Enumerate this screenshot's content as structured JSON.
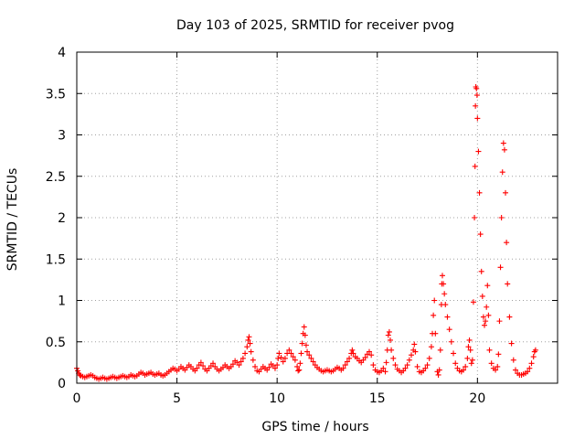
{
  "chart_data": {
    "type": "scatter",
    "title": "Day 103 of 2025, SRMTID for receiver pvog",
    "xlabel": "GPS time / hours",
    "ylabel": "SRMTID / TECUs",
    "xlim": [
      0,
      24
    ],
    "ylim": [
      0,
      4
    ],
    "xticks": [
      0,
      5,
      10,
      15,
      20
    ],
    "yticks": [
      0,
      0.5,
      1,
      1.5,
      2,
      2.5,
      3,
      3.5,
      4
    ],
    "xtick_labels": [
      "0",
      "5",
      "10",
      "15",
      "20"
    ],
    "ytick_labels": [
      "0",
      "0.5",
      "1",
      "1.5",
      "2",
      "2.5",
      "3",
      "3.5",
      "4"
    ],
    "grid": true,
    "marker": "+",
    "color": "#ff0000",
    "series": [
      {
        "name": "SRMTID",
        "points": [
          [
            0.0,
            0.18
          ],
          [
            0.05,
            0.15
          ],
          [
            0.1,
            0.12
          ],
          [
            0.15,
            0.1
          ],
          [
            0.2,
            0.09
          ],
          [
            0.3,
            0.08
          ],
          [
            0.4,
            0.07
          ],
          [
            0.5,
            0.08
          ],
          [
            0.6,
            0.09
          ],
          [
            0.7,
            0.1
          ],
          [
            0.8,
            0.09
          ],
          [
            0.9,
            0.07
          ],
          [
            1.0,
            0.06
          ],
          [
            1.1,
            0.05
          ],
          [
            1.2,
            0.06
          ],
          [
            1.3,
            0.07
          ],
          [
            1.4,
            0.06
          ],
          [
            1.5,
            0.05
          ],
          [
            1.6,
            0.06
          ],
          [
            1.7,
            0.07
          ],
          [
            1.8,
            0.08
          ],
          [
            1.9,
            0.07
          ],
          [
            2.0,
            0.06
          ],
          [
            2.1,
            0.07
          ],
          [
            2.2,
            0.08
          ],
          [
            2.3,
            0.09
          ],
          [
            2.4,
            0.08
          ],
          [
            2.5,
            0.07
          ],
          [
            2.6,
            0.08
          ],
          [
            2.7,
            0.1
          ],
          [
            2.8,
            0.09
          ],
          [
            2.9,
            0.08
          ],
          [
            3.0,
            0.09
          ],
          [
            3.1,
            0.11
          ],
          [
            3.2,
            0.13
          ],
          [
            3.3,
            0.12
          ],
          [
            3.4,
            0.1
          ],
          [
            3.5,
            0.11
          ],
          [
            3.6,
            0.12
          ],
          [
            3.7,
            0.13
          ],
          [
            3.8,
            0.11
          ],
          [
            3.9,
            0.1
          ],
          [
            4.0,
            0.11
          ],
          [
            4.1,
            0.12
          ],
          [
            4.2,
            0.1
          ],
          [
            4.3,
            0.09
          ],
          [
            4.4,
            0.1
          ],
          [
            4.5,
            0.12
          ],
          [
            4.6,
            0.14
          ],
          [
            4.7,
            0.16
          ],
          [
            4.8,
            0.18
          ],
          [
            4.9,
            0.17
          ],
          [
            5.0,
            0.15
          ],
          [
            5.1,
            0.17
          ],
          [
            5.2,
            0.2
          ],
          [
            5.3,
            0.18
          ],
          [
            5.4,
            0.16
          ],
          [
            5.5,
            0.19
          ],
          [
            5.6,
            0.22
          ],
          [
            5.7,
            0.2
          ],
          [
            5.8,
            0.17
          ],
          [
            5.9,
            0.15
          ],
          [
            6.0,
            0.18
          ],
          [
            6.1,
            0.22
          ],
          [
            6.2,
            0.25
          ],
          [
            6.3,
            0.21
          ],
          [
            6.4,
            0.17
          ],
          [
            6.5,
            0.15
          ],
          [
            6.6,
            0.18
          ],
          [
            6.7,
            0.21
          ],
          [
            6.8,
            0.24
          ],
          [
            6.9,
            0.2
          ],
          [
            7.0,
            0.17
          ],
          [
            7.1,
            0.15
          ],
          [
            7.2,
            0.17
          ],
          [
            7.3,
            0.19
          ],
          [
            7.4,
            0.22
          ],
          [
            7.5,
            0.2
          ],
          [
            7.6,
            0.18
          ],
          [
            7.7,
            0.2
          ],
          [
            7.8,
            0.23
          ],
          [
            7.9,
            0.27
          ],
          [
            8.0,
            0.25
          ],
          [
            8.1,
            0.22
          ],
          [
            8.2,
            0.26
          ],
          [
            8.3,
            0.3
          ],
          [
            8.4,
            0.36
          ],
          [
            8.5,
            0.44
          ],
          [
            8.55,
            0.52
          ],
          [
            8.6,
            0.56
          ],
          [
            8.65,
            0.48
          ],
          [
            8.7,
            0.38
          ],
          [
            8.8,
            0.28
          ],
          [
            8.9,
            0.2
          ],
          [
            9.0,
            0.15
          ],
          [
            9.1,
            0.14
          ],
          [
            9.2,
            0.17
          ],
          [
            9.3,
            0.2
          ],
          [
            9.4,
            0.18
          ],
          [
            9.5,
            0.16
          ],
          [
            9.6,
            0.19
          ],
          [
            9.7,
            0.23
          ],
          [
            9.8,
            0.21
          ],
          [
            9.9,
            0.18
          ],
          [
            10.0,
            0.22
          ],
          [
            10.05,
            0.3
          ],
          [
            10.1,
            0.36
          ],
          [
            10.2,
            0.31
          ],
          [
            10.3,
            0.26
          ],
          [
            10.4,
            0.3
          ],
          [
            10.5,
            0.36
          ],
          [
            10.6,
            0.4
          ],
          [
            10.7,
            0.36
          ],
          [
            10.8,
            0.32
          ],
          [
            10.9,
            0.28
          ],
          [
            11.0,
            0.2
          ],
          [
            11.05,
            0.15
          ],
          [
            11.1,
            0.16
          ],
          [
            11.15,
            0.24
          ],
          [
            11.2,
            0.36
          ],
          [
            11.25,
            0.48
          ],
          [
            11.3,
            0.6
          ],
          [
            11.35,
            0.68
          ],
          [
            11.4,
            0.58
          ],
          [
            11.45,
            0.46
          ],
          [
            11.5,
            0.38
          ],
          [
            11.6,
            0.34
          ],
          [
            11.7,
            0.3
          ],
          [
            11.8,
            0.26
          ],
          [
            11.9,
            0.22
          ],
          [
            12.0,
            0.19
          ],
          [
            12.1,
            0.17
          ],
          [
            12.2,
            0.15
          ],
          [
            12.3,
            0.14
          ],
          [
            12.4,
            0.15
          ],
          [
            12.5,
            0.16
          ],
          [
            12.6,
            0.15
          ],
          [
            12.7,
            0.14
          ],
          [
            12.8,
            0.15
          ],
          [
            12.9,
            0.17
          ],
          [
            13.0,
            0.19
          ],
          [
            13.1,
            0.18
          ],
          [
            13.2,
            0.16
          ],
          [
            13.3,
            0.18
          ],
          [
            13.4,
            0.22
          ],
          [
            13.5,
            0.26
          ],
          [
            13.6,
            0.3
          ],
          [
            13.7,
            0.36
          ],
          [
            13.75,
            0.4
          ],
          [
            13.8,
            0.36
          ],
          [
            13.9,
            0.32
          ],
          [
            14.0,
            0.3
          ],
          [
            14.1,
            0.27
          ],
          [
            14.2,
            0.25
          ],
          [
            14.3,
            0.28
          ],
          [
            14.4,
            0.31
          ],
          [
            14.5,
            0.35
          ],
          [
            14.6,
            0.38
          ],
          [
            14.7,
            0.34
          ],
          [
            14.8,
            0.22
          ],
          [
            14.9,
            0.16
          ],
          [
            15.0,
            0.14
          ],
          [
            15.1,
            0.13
          ],
          [
            15.2,
            0.15
          ],
          [
            15.3,
            0.18
          ],
          [
            15.4,
            0.14
          ],
          [
            15.45,
            0.25
          ],
          [
            15.5,
            0.4
          ],
          [
            15.55,
            0.58
          ],
          [
            15.6,
            0.62
          ],
          [
            15.65,
            0.52
          ],
          [
            15.7,
            0.4
          ],
          [
            15.8,
            0.3
          ],
          [
            15.9,
            0.22
          ],
          [
            16.0,
            0.17
          ],
          [
            16.1,
            0.15
          ],
          [
            16.2,
            0.13
          ],
          [
            16.3,
            0.15
          ],
          [
            16.4,
            0.18
          ],
          [
            16.5,
            0.22
          ],
          [
            16.6,
            0.28
          ],
          [
            16.7,
            0.34
          ],
          [
            16.8,
            0.4
          ],
          [
            16.85,
            0.47
          ],
          [
            16.9,
            0.38
          ],
          [
            17.0,
            0.2
          ],
          [
            17.1,
            0.14
          ],
          [
            17.2,
            0.13
          ],
          [
            17.3,
            0.15
          ],
          [
            17.4,
            0.18
          ],
          [
            17.5,
            0.22
          ],
          [
            17.6,
            0.3
          ],
          [
            17.7,
            0.44
          ],
          [
            17.75,
            0.6
          ],
          [
            17.8,
            0.82
          ],
          [
            17.85,
            1.0
          ],
          [
            17.9,
            0.6
          ],
          [
            18.0,
            0.14
          ],
          [
            18.05,
            0.1
          ],
          [
            18.1,
            0.16
          ],
          [
            18.15,
            0.4
          ],
          [
            18.2,
            0.95
          ],
          [
            18.22,
            1.2
          ],
          [
            18.25,
            1.3
          ],
          [
            18.3,
            1.2
          ],
          [
            18.35,
            1.08
          ],
          [
            18.4,
            0.95
          ],
          [
            18.5,
            0.8
          ],
          [
            18.6,
            0.65
          ],
          [
            18.7,
            0.5
          ],
          [
            18.8,
            0.36
          ],
          [
            18.9,
            0.24
          ],
          [
            19.0,
            0.18
          ],
          [
            19.1,
            0.15
          ],
          [
            19.2,
            0.14
          ],
          [
            19.3,
            0.16
          ],
          [
            19.4,
            0.2
          ],
          [
            19.5,
            0.3
          ],
          [
            19.55,
            0.44
          ],
          [
            19.6,
            0.52
          ],
          [
            19.65,
            0.4
          ],
          [
            19.7,
            0.24
          ],
          [
            19.75,
            0.28
          ],
          [
            19.8,
            0.98
          ],
          [
            19.85,
            2.0
          ],
          [
            19.88,
            2.62
          ],
          [
            19.9,
            3.35
          ],
          [
            19.92,
            3.58
          ],
          [
            19.95,
            3.56
          ],
          [
            19.98,
            3.48
          ],
          [
            20.0,
            3.2
          ],
          [
            20.05,
            2.8
          ],
          [
            20.1,
            2.3
          ],
          [
            20.15,
            1.8
          ],
          [
            20.2,
            1.35
          ],
          [
            20.25,
            1.05
          ],
          [
            20.3,
            0.8
          ],
          [
            20.35,
            0.7
          ],
          [
            20.4,
            0.75
          ],
          [
            20.45,
            0.92
          ],
          [
            20.5,
            1.18
          ],
          [
            20.55,
            0.82
          ],
          [
            20.6,
            0.4
          ],
          [
            20.7,
            0.24
          ],
          [
            20.8,
            0.18
          ],
          [
            20.9,
            0.16
          ],
          [
            21.0,
            0.2
          ],
          [
            21.05,
            0.35
          ],
          [
            21.1,
            0.75
          ],
          [
            21.15,
            1.4
          ],
          [
            21.2,
            2.0
          ],
          [
            21.25,
            2.55
          ],
          [
            21.3,
            2.9
          ],
          [
            21.35,
            2.82
          ],
          [
            21.4,
            2.3
          ],
          [
            21.45,
            1.7
          ],
          [
            21.5,
            1.2
          ],
          [
            21.6,
            0.8
          ],
          [
            21.7,
            0.48
          ],
          [
            21.8,
            0.28
          ],
          [
            21.9,
            0.16
          ],
          [
            22.0,
            0.12
          ],
          [
            22.1,
            0.1
          ],
          [
            22.2,
            0.1
          ],
          [
            22.3,
            0.11
          ],
          [
            22.4,
            0.12
          ],
          [
            22.5,
            0.14
          ],
          [
            22.6,
            0.18
          ],
          [
            22.7,
            0.24
          ],
          [
            22.8,
            0.32
          ],
          [
            22.85,
            0.38
          ],
          [
            22.9,
            0.4
          ]
        ]
      }
    ]
  }
}
